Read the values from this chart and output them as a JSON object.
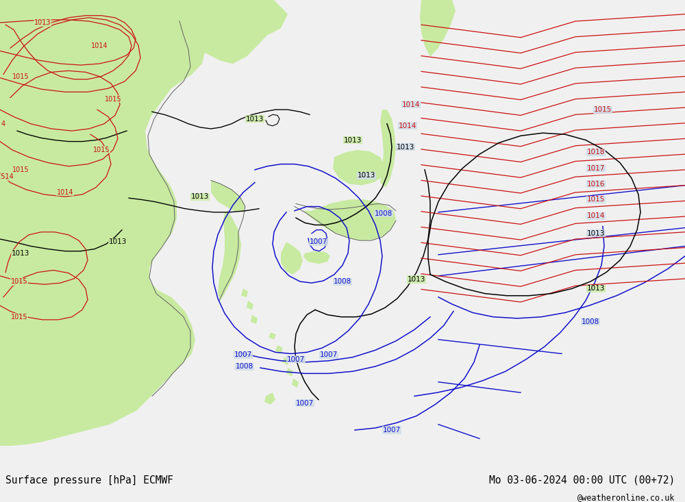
{
  "title_left": "Surface pressure [hPa] ECMWF",
  "title_right": "Mo 03-06-2024 00:00 UTC (00+72)",
  "watermark": "@weatheronline.co.uk",
  "ocean_color": "#d0dce8",
  "land_color": "#c8eaa0",
  "fig_width": 10.0,
  "fig_height": 7.33,
  "bottom_bar_color": "#f0f0f0",
  "bottom_text_color": "#000000",
  "blue": "#1010cc",
  "red": "#cc1010",
  "black": "#000000",
  "gray": "#a0a0a0",
  "darkgray": "#606060"
}
